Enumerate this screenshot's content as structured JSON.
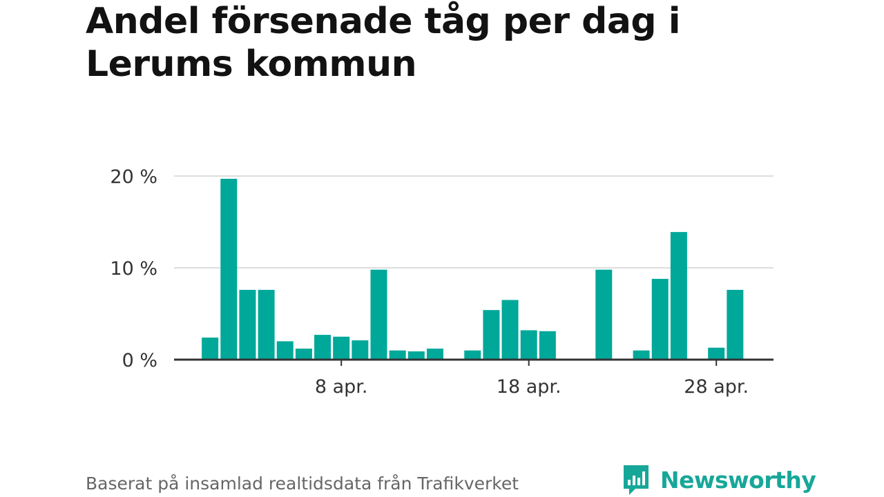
{
  "header": {
    "title": "Andel försenade tåg per dag i Lerums kommun"
  },
  "footer": {
    "source": "Baserat på insamlad realtidsdata från Trafikverket",
    "brand": "Newsworthy"
  },
  "colors": {
    "bar": "#00a89a",
    "brand": "#17a799",
    "grid": "#dddddd",
    "axis": "#333333"
  },
  "chart_data": {
    "type": "bar",
    "title": "Andel försenade tåg per dag i Lerums kommun",
    "xlabel": "",
    "ylabel": "",
    "x_unit": "day of April",
    "x_range": [
      0,
      30
    ],
    "ylim": [
      0,
      20
    ],
    "y_ticks": [
      {
        "value": 0,
        "label": "0 %"
      },
      {
        "value": 10,
        "label": "10 %"
      },
      {
        "value": 20,
        "label": "20 %"
      }
    ],
    "x_ticks": [
      {
        "day": 8,
        "label": "8 apr."
      },
      {
        "day": 18,
        "label": "18 apr."
      },
      {
        "day": 28,
        "label": "28 apr."
      }
    ],
    "grid": true,
    "days": [
      1,
      2,
      3,
      4,
      5,
      6,
      7,
      8,
      9,
      10,
      11,
      12,
      13,
      14,
      15,
      16,
      17,
      18,
      19,
      20,
      21,
      22,
      23,
      24,
      25,
      26,
      27,
      28,
      29,
      30
    ],
    "values": [
      2.4,
      19.7,
      7.6,
      7.6,
      2.0,
      1.2,
      2.7,
      2.5,
      2.1,
      9.8,
      1.0,
      0.9,
      1.2,
      0,
      1.0,
      5.4,
      6.5,
      3.2,
      3.1,
      0,
      0,
      9.8,
      0,
      1.0,
      8.8,
      13.9,
      0,
      1.3,
      7.6,
      0
    ]
  }
}
